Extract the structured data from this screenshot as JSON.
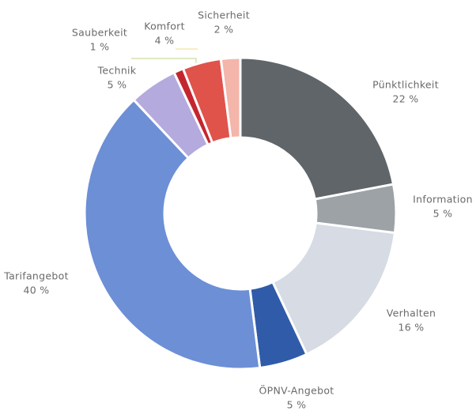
{
  "chart_data": {
    "type": "pie",
    "categories": [
      "Pünktlichkeit",
      "Information",
      "Verhalten",
      "ÖPNV-Angebot",
      "Tarifangebot",
      "Technik",
      "Sauberkeit",
      "Komfort",
      "Sicherheit"
    ],
    "values": [
      22,
      5,
      16,
      5,
      40,
      5,
      1,
      4,
      2
    ],
    "value_labels": [
      "22 %",
      "5 %",
      "16 %",
      "5 %",
      "40 %",
      "5 %",
      "1 %",
      "4 %",
      "2 %"
    ],
    "colors": [
      "#5f6569",
      "#9ca2a6",
      "#d6dbe4",
      "#2f5ba9",
      "#6c8fd6",
      "#b4aadd",
      "#c4262f",
      "#e0534a",
      "#f4b5aa"
    ],
    "donut": true
  }
}
